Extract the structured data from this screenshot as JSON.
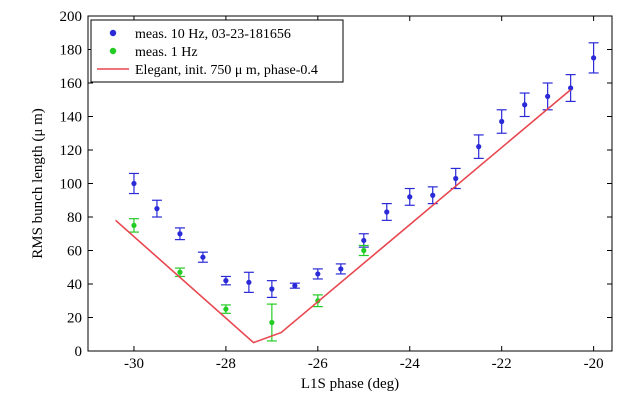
{
  "chart_data": {
    "type": "scatter",
    "xlabel": "L1S phase (deg)",
    "ylabel": "RMS bunch length (μ m)",
    "xlim": [
      -31,
      -19.6
    ],
    "ylim": [
      0,
      200
    ],
    "xticks": [
      -30,
      -28,
      -26,
      -24,
      -22,
      -20
    ],
    "yticks": [
      0,
      20,
      40,
      60,
      80,
      100,
      120,
      140,
      160,
      180,
      200
    ],
    "xtick_labels": [
      "-30",
      "-28",
      "-26",
      "-24",
      "-22",
      "-20"
    ],
    "ytick_labels": [
      "0",
      "20",
      "40",
      "60",
      "80",
      "100",
      "120",
      "140",
      "160",
      "180",
      "200"
    ],
    "grid": false,
    "legend_position": "top-left",
    "series": [
      {
        "name": "meas. 10 Hz, 03-23-181656",
        "kind": "errorbar",
        "color": "#2a2ad8",
        "points": [
          {
            "x": -30.0,
            "y": 100,
            "err": 6
          },
          {
            "x": -29.5,
            "y": 85,
            "err": 5
          },
          {
            "x": -29.0,
            "y": 70,
            "err": 3.5
          },
          {
            "x": -28.5,
            "y": 56,
            "err": 3
          },
          {
            "x": -28.0,
            "y": 42,
            "err": 2.5
          },
          {
            "x": -27.5,
            "y": 41,
            "err": 6
          },
          {
            "x": -27.0,
            "y": 37,
            "err": 5
          },
          {
            "x": -26.5,
            "y": 39,
            "err": 1.5
          },
          {
            "x": -26.0,
            "y": 46,
            "err": 3
          },
          {
            "x": -25.5,
            "y": 49,
            "err": 3
          },
          {
            "x": -25.0,
            "y": 66,
            "err": 4
          },
          {
            "x": -24.5,
            "y": 83,
            "err": 5
          },
          {
            "x": -24.0,
            "y": 92,
            "err": 5
          },
          {
            "x": -23.5,
            "y": 93,
            "err": 5
          },
          {
            "x": -23.0,
            "y": 103,
            "err": 6
          },
          {
            "x": -22.5,
            "y": 122,
            "err": 7
          },
          {
            "x": -22.0,
            "y": 137,
            "err": 7
          },
          {
            "x": -21.5,
            "y": 147,
            "err": 7
          },
          {
            "x": -21.0,
            "y": 152,
            "err": 8
          },
          {
            "x": -20.5,
            "y": 157,
            "err": 8
          },
          {
            "x": -20.0,
            "y": 175,
            "err": 9
          }
        ]
      },
      {
        "name": "meas. 1 Hz",
        "kind": "errorbar",
        "color": "#22cc22",
        "points": [
          {
            "x": -30.0,
            "y": 75,
            "err": 4
          },
          {
            "x": -29.0,
            "y": 47,
            "err": 2.5
          },
          {
            "x": -28.0,
            "y": 25,
            "err": 2.5
          },
          {
            "x": -27.0,
            "y": 17,
            "err": 11
          },
          {
            "x": -26.0,
            "y": 30,
            "err": 3.5
          },
          {
            "x": -25.0,
            "y": 60,
            "err": 3
          }
        ]
      },
      {
        "name": "Elegant, init. 750 μ m, phase-0.4",
        "kind": "line",
        "color": "#e8474f",
        "points": [
          {
            "x": -30.4,
            "y": 78
          },
          {
            "x": -27.4,
            "y": 5
          },
          {
            "x": -26.8,
            "y": 11
          },
          {
            "x": -20.5,
            "y": 156
          }
        ]
      }
    ]
  }
}
